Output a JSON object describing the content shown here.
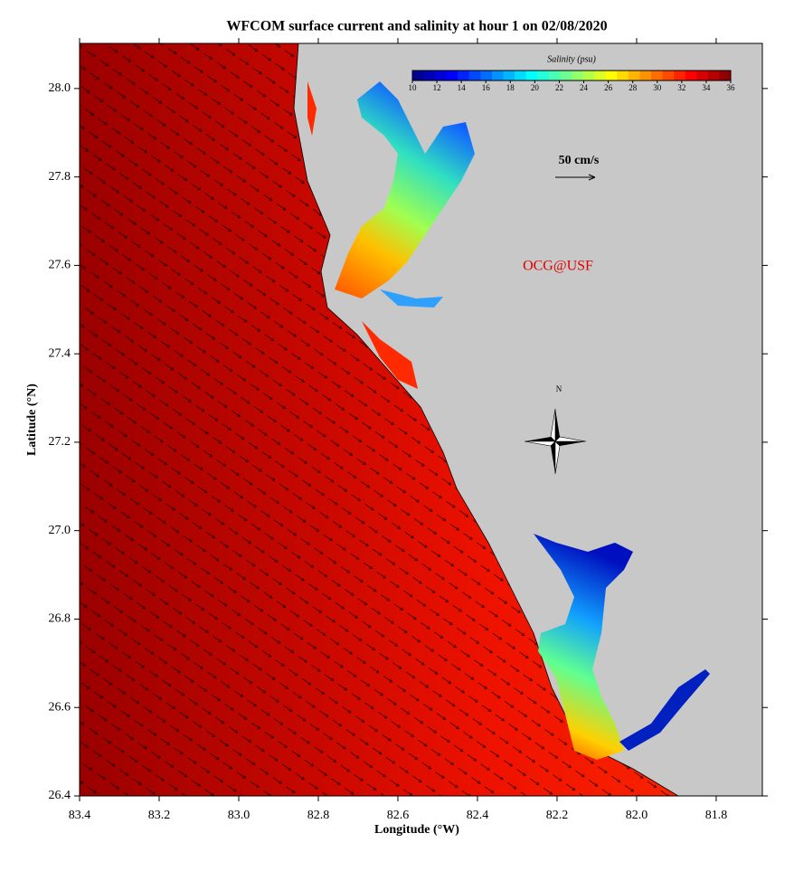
{
  "map": {
    "title": "WFCOM surface current and salinity at hour 1 on 02/08/2020",
    "xlabel": "Longitude (°W)",
    "ylabel": "Latitude (°N)",
    "xlim": [
      83.4,
      81.684
    ],
    "ylim": [
      26.4,
      28.102
    ],
    "xticks": [
      83.4,
      83.2,
      {
        "value": 83,
        "label": "83.0"
      },
      82.8,
      82.6,
      82.4,
      82.2,
      {
        "value": 82,
        "label": "82.0"
      },
      81.8
    ],
    "yticks": [
      26.4,
      26.6,
      26.8,
      {
        "value": 27,
        "label": "27.0"
      },
      27.2,
      27.4,
      27.6,
      27.8,
      {
        "value": 28,
        "label": "28.0"
      }
    ],
    "colorbar": {
      "label": "Salinity (psu)",
      "lim": [
        10,
        36
      ],
      "ticks": [
        10,
        12,
        14,
        16,
        18,
        20,
        22,
        24,
        26,
        28,
        30,
        32,
        34,
        36
      ]
    },
    "scale_label": "50 cm/s",
    "watermark": "OCG@USF",
    "compass_label": "N"
  }
}
